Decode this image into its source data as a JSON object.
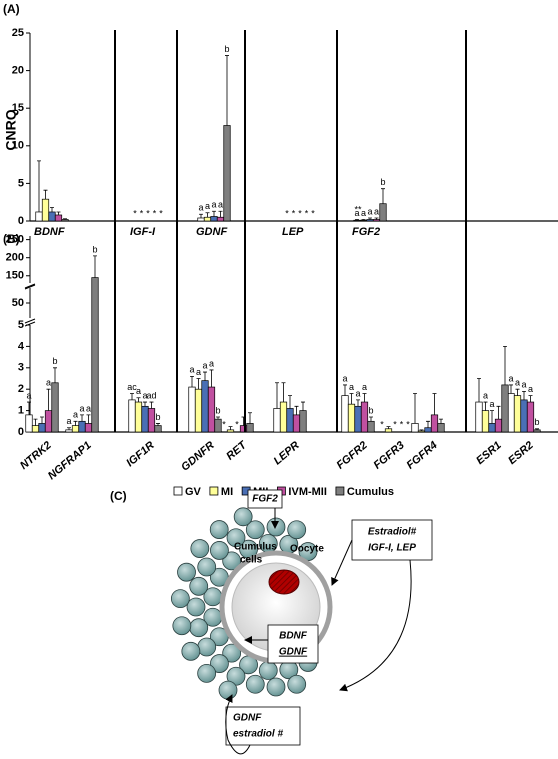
{
  "chart_data": [
    {
      "type": "bar",
      "panel_label": "(A)",
      "y_label": "CNRQ",
      "categories": [
        "BDNF",
        "IGF-I",
        "GDNF",
        "LEP",
        "FGF2"
      ],
      "ylim": [
        0,
        25
      ],
      "yticks": [
        0,
        5,
        10,
        15,
        20,
        25
      ],
      "annotations": [
        "**"
      ],
      "series": [
        {
          "name": "GV",
          "color": "#ffffff",
          "values": [
            1.2,
            null,
            0.4,
            null,
            0.1
          ],
          "errors": [
            6.8,
            null,
            0.5,
            null,
            0.1
          ],
          "labels": [
            null,
            "*",
            "a",
            "*",
            "a"
          ]
        },
        {
          "name": "MI",
          "color": "#ffff99",
          "values": [
            2.9,
            null,
            0.5,
            null,
            0.1
          ],
          "errors": [
            1.2,
            null,
            0.6,
            null,
            0.1
          ],
          "labels": [
            null,
            "*",
            "a",
            "*",
            "a"
          ]
        },
        {
          "name": "MII",
          "color": "#4a6fb5",
          "values": [
            1.2,
            null,
            0.6,
            null,
            0.2
          ],
          "errors": [
            0.6,
            null,
            0.7,
            null,
            0.2
          ],
          "labels": [
            null,
            "*",
            "a",
            "*",
            "a"
          ]
        },
        {
          "name": "IVM-MII",
          "color": "#c050a0",
          "values": [
            0.8,
            null,
            0.5,
            null,
            0.2
          ],
          "errors": [
            0.4,
            null,
            0.8,
            null,
            0.2
          ],
          "labels": [
            null,
            "*",
            "a",
            "*",
            "a"
          ]
        },
        {
          "name": "Cumulus",
          "color": "#7f7f7f",
          "values": [
            0.2,
            null,
            12.7,
            null,
            2.3
          ],
          "errors": [
            0.1,
            null,
            9.3,
            null,
            2.0
          ],
          "labels": [
            null,
            "*",
            "b",
            "*",
            "b"
          ]
        }
      ]
    },
    {
      "type": "bar",
      "panel_label": "(B)",
      "categories": [
        "NTRK2",
        "NGFRAP1",
        "IGF1R",
        "GDNFR",
        "RET",
        "LEPR",
        "FGFR2",
        "FGFR3",
        "FGFR4",
        "ESR1",
        "ESR2"
      ],
      "ylim": [
        0,
        5
      ],
      "yticks": [
        0,
        1,
        2,
        3,
        4,
        5
      ],
      "y_breaks": [
        {
          "ylim": [
            40,
            60
          ],
          "yticks": [
            50
          ]
        },
        {
          "ylim": [
            130,
            260
          ],
          "yticks": [
            150,
            200,
            250
          ]
        }
      ],
      "series": [
        {
          "color": "#ffffff",
          "values": [
            0.8,
            0.1,
            1.5,
            2.1,
            null,
            1.1,
            1.7,
            null,
            0.4,
            1.4,
            1.8
          ],
          "errors": [
            0.6,
            0.1,
            0.3,
            0.5,
            null,
            1.2,
            0.5,
            null,
            1.4,
            1.1,
            0.4
          ],
          "labels": [
            "a",
            "a",
            "ac",
            "a",
            "*",
            null,
            "a",
            "*",
            null,
            null,
            "a"
          ]
        },
        {
          "color": "#ffff99",
          "values": [
            0.3,
            0.3,
            1.4,
            2.0,
            0.1,
            1.4,
            1.3,
            0.15,
            0.05,
            1.0,
            1.7
          ],
          "errors": [
            0.3,
            0.2,
            0.2,
            0.5,
            0.15,
            0.9,
            0.5,
            0.1,
            0.05,
            0.4,
            0.3
          ],
          "labels": [
            null,
            "a",
            "a",
            "a",
            null,
            null,
            "a",
            null,
            null,
            "a",
            "a"
          ]
        },
        {
          "color": "#4a6fb5",
          "values": [
            0.4,
            0.5,
            1.2,
            2.4,
            null,
            1.1,
            1.2,
            null,
            0.2,
            0.4,
            1.5
          ],
          "errors": [
            0.3,
            0.3,
            0.2,
            0.4,
            null,
            0.6,
            0.3,
            null,
            0.3,
            0.6,
            0.4
          ],
          "labels": [
            null,
            "a",
            "a",
            "a",
            "*",
            null,
            "a",
            "*",
            null,
            "a",
            "a"
          ]
        },
        {
          "color": "#c050a0",
          "values": [
            1.0,
            0.4,
            1.1,
            2.1,
            0.3,
            0.8,
            1.4,
            null,
            0.8,
            0.6,
            1.4
          ],
          "errors": [
            1.0,
            0.4,
            0.3,
            0.8,
            0.4,
            0.4,
            0.4,
            null,
            1.0,
            0.6,
            0.3
          ],
          "labels": [
            "a",
            "a",
            "ad",
            "a",
            null,
            null,
            "a",
            "*",
            null,
            null,
            "a"
          ]
        },
        {
          "color": "#7f7f7f",
          "values": [
            2.3,
            145,
            0.3,
            0.6,
            0.4,
            1.0,
            0.5,
            null,
            0.4,
            2.2,
            0.1
          ],
          "errors": [
            0.7,
            60,
            0.1,
            0.1,
            0.5,
            0.4,
            0.2,
            null,
            0.2,
            1.8,
            0.05
          ],
          "labels": [
            "b",
            "b",
            "b",
            "b",
            null,
            null,
            "b",
            "*",
            null,
            null,
            "b"
          ]
        }
      ]
    }
  ],
  "diagram": {
    "panel_label": "(C)",
    "fgf2": "FGF2",
    "cumulus": [
      "Cumulus",
      "cells"
    ],
    "oocyte": "Oocyte",
    "oocyte_factors": [
      "BDNF",
      "GDNF"
    ],
    "external": [
      "Estradiol#",
      "IGF-I, LEP"
    ],
    "cumulus_factors": [
      "GDNF",
      "estradiol #"
    ]
  }
}
